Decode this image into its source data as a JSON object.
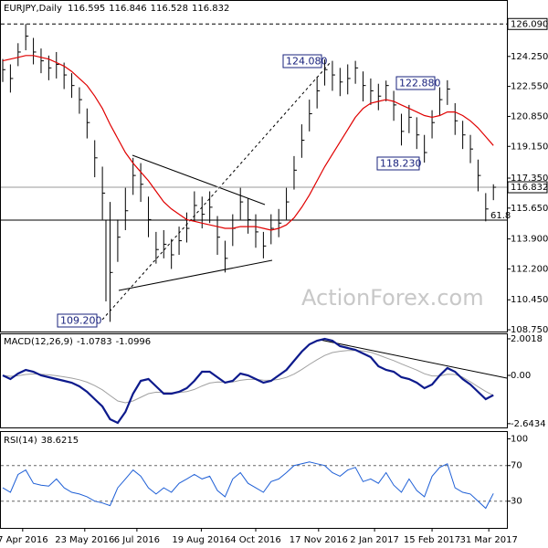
{
  "chart_data": [
    {
      "type": "ohlc",
      "title": "EURJPY,Daily",
      "header_values": [
        116.595,
        116.846,
        116.528,
        116.832
      ],
      "watermark": "ActionForex.com",
      "fibo_label": "61.8",
      "bar_color": "#000000",
      "high": [
        124.1,
        123.8,
        125.0,
        126.09,
        125.3,
        124.7,
        124.3,
        124.5,
        123.9,
        123.3,
        122.5,
        121.3,
        119.5,
        118.0,
        116.0,
        115.0,
        116.8,
        118.5,
        118.2,
        116.3,
        114.3,
        114.4,
        113.9,
        114.6,
        115.4,
        116.6,
        116.3,
        116.6,
        115.2,
        113.8,
        115.3,
        116.8,
        116.2,
        115.3,
        114.3,
        115.3,
        115.6,
        116.8,
        118.6,
        120.4,
        121.8,
        123.1,
        124.08,
        124.0,
        123.6,
        123.8,
        124.0,
        123.4,
        123.0,
        122.7,
        122.88,
        122.3,
        121.0,
        121.5,
        120.8,
        119.8,
        121.2,
        122.5,
        122.9,
        121.6,
        120.6,
        119.8,
        118.4,
        116.5,
        117.0
      ],
      "low": [
        122.8,
        122.2,
        123.7,
        124.6,
        123.8,
        123.3,
        122.9,
        123.0,
        122.4,
        121.9,
        121.0,
        119.6,
        117.4,
        115.0,
        109.2,
        112.6,
        114.4,
        116.4,
        116.0,
        114.0,
        112.5,
        112.8,
        112.2,
        113.0,
        113.7,
        114.9,
        114.5,
        114.8,
        113.0,
        112.0,
        113.5,
        115.0,
        114.2,
        113.4,
        112.8,
        113.6,
        114.0,
        115.0,
        116.7,
        118.5,
        120.0,
        121.3,
        122.6,
        122.3,
        122.0,
        122.1,
        122.7,
        121.7,
        121.5,
        121.2,
        121.7,
        120.6,
        119.2,
        119.9,
        119.0,
        118.23,
        119.6,
        120.9,
        121.5,
        119.8,
        119.0,
        118.2,
        116.6,
        114.9,
        116.1
      ],
      "close": [
        123.5,
        123.0,
        124.5,
        125.4,
        124.5,
        124.0,
        123.6,
        123.8,
        123.2,
        122.6,
        121.8,
        120.5,
        118.5,
        116.5,
        112.0,
        114.0,
        115.5,
        117.5,
        117.0,
        115.0,
        113.3,
        113.6,
        113.0,
        113.8,
        114.5,
        115.8,
        115.3,
        115.7,
        114.0,
        112.8,
        114.5,
        116.0,
        115.0,
        114.3,
        113.5,
        114.5,
        114.8,
        116.0,
        117.8,
        119.5,
        121.0,
        122.3,
        123.5,
        123.2,
        122.8,
        123.0,
        123.6,
        122.6,
        122.3,
        122.0,
        122.6,
        121.5,
        120.0,
        120.8,
        119.8,
        118.8,
        120.5,
        121.8,
        122.4,
        120.6,
        119.8,
        119.0,
        117.5,
        115.6,
        116.832
      ],
      "ma": {
        "color": "#e00000",
        "values": [
          124.0,
          124.1,
          124.2,
          124.3,
          124.3,
          124.2,
          124.1,
          123.9,
          123.7,
          123.4,
          123.0,
          122.6,
          122.0,
          121.3,
          120.4,
          119.6,
          118.8,
          118.2,
          117.7,
          117.2,
          116.6,
          116.0,
          115.6,
          115.3,
          115.0,
          114.9,
          114.8,
          114.7,
          114.6,
          114.5,
          114.5,
          114.6,
          114.6,
          114.6,
          114.5,
          114.4,
          114.5,
          114.7,
          115.1,
          115.7,
          116.4,
          117.2,
          118.0,
          118.7,
          119.4,
          120.1,
          120.8,
          121.3,
          121.6,
          121.7,
          121.8,
          121.7,
          121.5,
          121.3,
          121.1,
          120.9,
          120.8,
          120.9,
          121.1,
          121.1,
          120.9,
          120.6,
          120.2,
          119.7,
          119.2
        ]
      },
      "annotations": [
        {
          "value": 124.08,
          "label": "124.080"
        },
        {
          "value": 122.88,
          "label": "122.880"
        },
        {
          "value": 118.23,
          "label": "118.230"
        },
        {
          "value": 109.2,
          "label": "109.200"
        },
        {
          "value": 126.09,
          "label": "126.090"
        }
      ],
      "ylim": [
        108.65,
        127.45
      ],
      "yticks": [
        {
          "value": 124.25,
          "label": "124.250"
        },
        {
          "value": 122.55,
          "label": "122.550"
        },
        {
          "value": 120.85,
          "label": "120.850"
        },
        {
          "value": 119.15,
          "label": "119.150"
        },
        {
          "value": 117.35,
          "label": "117.350"
        },
        {
          "value": 115.65,
          "label": "115.650"
        },
        {
          "value": 113.9,
          "label": "113.900"
        },
        {
          "value": 112.2,
          "label": "112.200"
        },
        {
          "value": 110.45,
          "label": "110.450"
        },
        {
          "value": 108.75,
          "label": "108.750"
        }
      ],
      "xlim": [
        0,
        66
      ],
      "xticks": [
        {
          "value": 2.6,
          "label": "7 Apr 2016"
        },
        {
          "value": 10.7,
          "label": "23 May 2016"
        },
        {
          "value": 17.5,
          "label": "6 Jul 2016"
        },
        {
          "value": 25.9,
          "label": "19 Aug 2016"
        },
        {
          "value": 33,
          "label": "4 Oct 2016"
        },
        {
          "value": 41.2,
          "label": "17 Nov 2016"
        },
        {
          "value": 48.5,
          "label": "2 Jan 2017"
        },
        {
          "value": 56,
          "label": "15 Feb 2017"
        },
        {
          "value": 63.4,
          "label": "31 Mar 2017"
        }
      ]
    },
    {
      "type": "line",
      "title": "MACD(12,26,9)",
      "header_values": [
        -1.0783,
        -1.0996
      ],
      "series": [
        {
          "color": "#0d1a8c",
          "values": [
            0.0,
            -0.2,
            0.1,
            0.3,
            0.2,
            0.0,
            -0.1,
            -0.2,
            -0.3,
            -0.4,
            -0.6,
            -0.9,
            -1.3,
            -1.7,
            -2.4,
            -2.6,
            -2.0,
            -1.0,
            -0.3,
            -0.2,
            -0.6,
            -1.0,
            -1.0,
            -0.9,
            -0.7,
            -0.3,
            0.2,
            0.2,
            -0.1,
            -0.4,
            -0.3,
            0.1,
            0.0,
            -0.2,
            -0.4,
            -0.3,
            0.0,
            0.3,
            0.8,
            1.3,
            1.7,
            1.9,
            2.0,
            1.9,
            1.6,
            1.5,
            1.4,
            1.2,
            1.0,
            0.5,
            0.3,
            0.2,
            -0.1,
            -0.2,
            -0.4,
            -0.7,
            -0.5,
            0.0,
            0.4,
            0.2,
            -0.2,
            -0.5,
            -0.9,
            -1.3,
            -1.0783
          ]
        },
        {
          "color": "#a0a0a0",
          "values": [
            0.0,
            -0.05,
            -0.02,
            0.05,
            0.08,
            0.06,
            0.03,
            -0.02,
            -0.08,
            -0.15,
            -0.24,
            -0.37,
            -0.56,
            -0.79,
            -1.1,
            -1.4,
            -1.5,
            -1.4,
            -1.2,
            -1.0,
            -0.92,
            -0.94,
            -0.95,
            -0.94,
            -0.89,
            -0.77,
            -0.58,
            -0.42,
            -0.36,
            -0.37,
            -0.36,
            -0.27,
            -0.22,
            -0.22,
            -0.26,
            -0.27,
            -0.22,
            -0.11,
            0.07,
            0.32,
            0.6,
            0.86,
            1.09,
            1.25,
            1.32,
            1.36,
            1.37,
            1.34,
            1.27,
            1.12,
            0.96,
            0.81,
            0.63,
            0.46,
            0.29,
            0.09,
            -0.03,
            -0.03,
            0.06,
            0.05,
            -0.1,
            -0.35,
            -0.62,
            -0.88,
            -1.0996
          ]
        }
      ],
      "ylim": [
        -2.85,
        2.3
      ],
      "yticks": [
        2.0018,
        {
          "value": 0,
          "label": "0.00"
        },
        -2.6434
      ]
    },
    {
      "type": "line",
      "title": "RSI(14)",
      "header_values": [
        38.6215
      ],
      "series": [
        {
          "color": "#1e5fd6",
          "values": [
            45,
            40,
            60,
            65,
            50,
            48,
            47,
            55,
            45,
            40,
            38,
            35,
            30,
            28,
            25,
            45,
            55,
            65,
            58,
            45,
            38,
            45,
            40,
            50,
            55,
            60,
            55,
            58,
            42,
            35,
            55,
            62,
            50,
            45,
            40,
            52,
            55,
            62,
            70,
            72,
            74,
            72,
            70,
            62,
            58,
            65,
            68,
            52,
            55,
            50,
            62,
            48,
            40,
            55,
            42,
            35,
            58,
            68,
            72,
            45,
            40,
            38,
            30,
            22,
            38.6215
          ]
        }
      ],
      "levels": [
        70,
        30
      ],
      "ylim": [
        0,
        108.7
      ],
      "yticks": [
        100,
        70,
        30
      ]
    }
  ]
}
